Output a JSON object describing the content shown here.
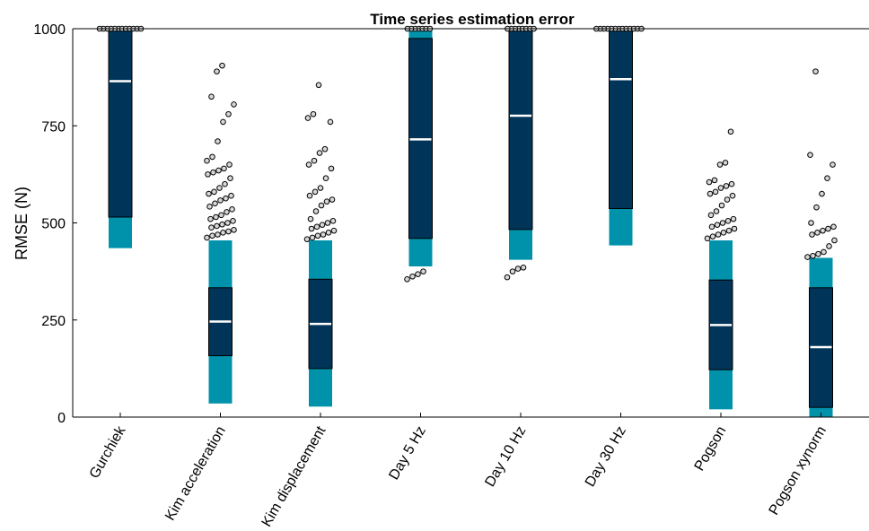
{
  "chart_data": {
    "type": "box",
    "title": "Time series estimation error",
    "xlabel": "",
    "ylabel": "RMSE (N)",
    "ylim": [
      0,
      1000
    ],
    "yticks": [
      0,
      250,
      500,
      750,
      1000
    ],
    "categories": [
      "Gurchiek",
      "Kim acceleration",
      "Kim displacement",
      "Day 5 Hz",
      "Day 10 Hz",
      "Day 30 Hz",
      "Pogson",
      "Pogson xynorm"
    ],
    "boxes": [
      {
        "whisker_low": 435,
        "q1": 515,
        "median": 865,
        "q3": 1000,
        "whisker_high": 1000,
        "outliers": [
          1000,
          1000,
          1000,
          1000,
          1000,
          1000,
          1000,
          1000,
          1000,
          1000,
          1000,
          1000
        ]
      },
      {
        "whisker_low": 35,
        "q1": 158,
        "median": 246,
        "q3": 333,
        "whisker_high": 455,
        "outliers": [
          462,
          467,
          470,
          475,
          478,
          482,
          488,
          492,
          496,
          500,
          505,
          510,
          515,
          520,
          528,
          535,
          542,
          550,
          558,
          563,
          570,
          575,
          580,
          590,
          600,
          615,
          625,
          630,
          635,
          640,
          650,
          660,
          670,
          710,
          760,
          780,
          805,
          825,
          890,
          905
        ]
      },
      {
        "whisker_low": 27,
        "q1": 125,
        "median": 240,
        "q3": 355,
        "whisker_high": 455,
        "outliers": [
          458,
          462,
          467,
          470,
          475,
          480,
          485,
          490,
          495,
          500,
          505,
          510,
          530,
          545,
          555,
          560,
          570,
          580,
          590,
          615,
          640,
          650,
          660,
          680,
          690,
          760,
          770,
          780,
          855
        ]
      },
      {
        "whisker_low": 388,
        "q1": 460,
        "median": 715,
        "q3": 975,
        "whisker_high": 1000,
        "outliers": [
          355,
          362,
          368,
          375,
          1000,
          1000,
          1000,
          1000,
          1000,
          1000,
          1000
        ]
      },
      {
        "whisker_low": 405,
        "q1": 483,
        "median": 776,
        "q3": 1000,
        "whisker_high": 1000,
        "outliers": [
          360,
          375,
          382,
          385,
          1000,
          1000,
          1000,
          1000,
          1000,
          1000,
          1000,
          1000
        ]
      },
      {
        "whisker_low": 442,
        "q1": 537,
        "median": 870,
        "q3": 1000,
        "whisker_high": 1000,
        "outliers": [
          1000,
          1000,
          1000,
          1000,
          1000,
          1000,
          1000,
          1000,
          1000,
          1000,
          1000,
          1000,
          1000
        ]
      },
      {
        "whisker_low": 20,
        "q1": 122,
        "median": 237,
        "q3": 353,
        "whisker_high": 455,
        "outliers": [
          460,
          465,
          470,
          475,
          480,
          485,
          490,
          495,
          500,
          505,
          510,
          520,
          530,
          545,
          560,
          570,
          575,
          580,
          590,
          595,
          600,
          605,
          610,
          650,
          655,
          735
        ]
      },
      {
        "whisker_low": 0,
        "q1": 25,
        "median": 180,
        "q3": 333,
        "whisker_high": 410,
        "outliers": [
          412,
          415,
          420,
          425,
          440,
          455,
          470,
          475,
          480,
          485,
          490,
          500,
          540,
          575,
          615,
          650,
          675,
          890
        ]
      }
    ],
    "colors": {
      "box": "#003559",
      "box_edge": "#000000",
      "whisker": "#0092ab",
      "median": "#ffffff",
      "outlier_fill": "#d8d8d8",
      "outlier_edge": "#000000"
    },
    "grid": false,
    "legend": "none"
  }
}
